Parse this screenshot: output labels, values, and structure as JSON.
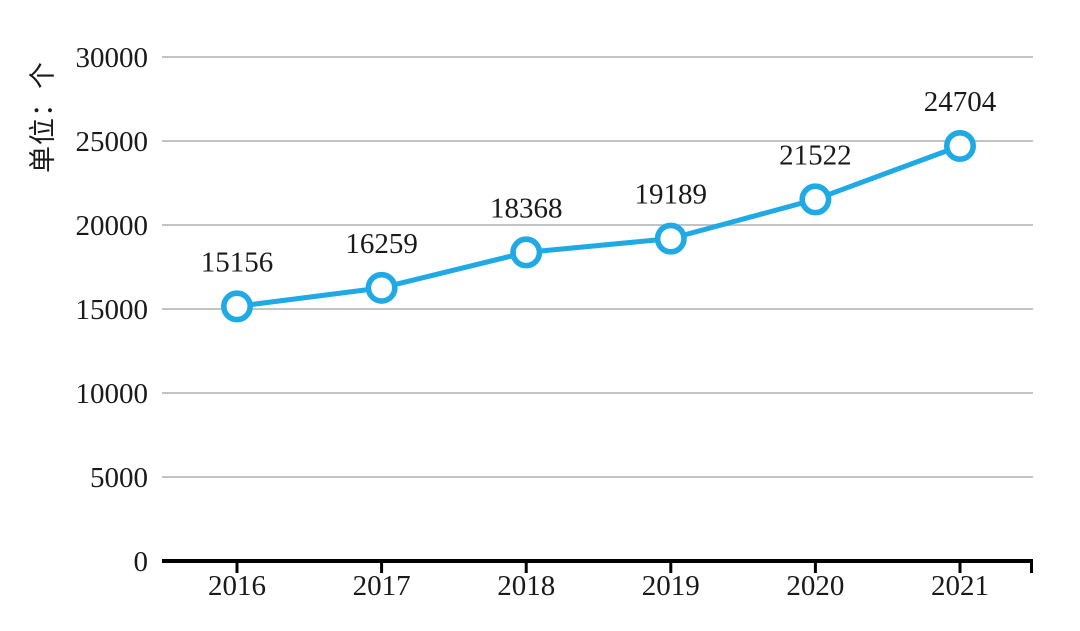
{
  "chart_data": {
    "type": "line",
    "title": "",
    "y_axis_title": "单位：个",
    "categories": [
      "2016",
      "2017",
      "2018",
      "2019",
      "2020",
      "2021"
    ],
    "series": [
      {
        "name": "value",
        "values": [
          15156,
          16259,
          18368,
          19189,
          21522,
          24704
        ]
      }
    ],
    "data_labels": [
      "15156",
      "16259",
      "18368",
      "19189",
      "21522",
      "24704"
    ],
    "y_ticks": [
      "0",
      "5000",
      "10000",
      "15000",
      "20000",
      "25000",
      "30000"
    ],
    "y_tick_values": [
      0,
      5000,
      10000,
      15000,
      20000,
      25000,
      30000
    ],
    "ylim": [
      0,
      30000
    ],
    "grid": "horizontal-only",
    "legend": "none",
    "marker": "open-circle",
    "colors": {
      "line": "#1FAAE5",
      "marker_fill": "#FFFFFF",
      "gridline": "#C3C3C3",
      "axis": "#000000",
      "text": "#1A1A1A"
    }
  }
}
